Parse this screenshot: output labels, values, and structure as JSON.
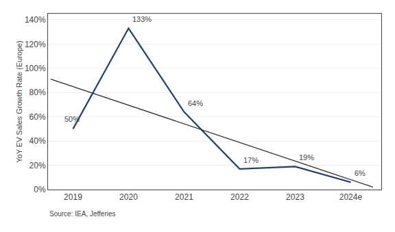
{
  "chart_data": {
    "type": "line",
    "y_label": "YoY EV Sales Growth Rate (Europe)",
    "series": [
      {
        "x": [
          2019,
          2020,
          2021,
          2022,
          2023,
          2024
        ],
        "values": [
          0.5,
          1.33,
          0.64,
          0.17,
          0.19,
          0.06
        ],
        "value_labels": [
          "50%",
          "133%",
          "64%",
          "17%",
          "19%",
          "6%"
        ],
        "color": "#1F3F6E"
      },
      {
        "x": [
          2018.6,
          2024.4
        ],
        "values": [
          0.91,
          0.02
        ],
        "color": "#2b2b2b"
      }
    ],
    "data_labels": true,
    "xlim": [
      2018.55,
      2024.55
    ],
    "xticks": [
      2019,
      2020,
      2021,
      2022,
      2023,
      {
        "value": 2024,
        "label": "2024e"
      }
    ],
    "ylim": [
      0,
      1.45
    ],
    "yticks": [
      {
        "value": 0,
        "label": "0%"
      },
      {
        "value": 0.2,
        "label": "20%"
      },
      {
        "value": 0.4,
        "label": "40%"
      },
      {
        "value": 0.6,
        "label": "60%"
      },
      {
        "value": 0.8,
        "label": "80%"
      },
      {
        "value": 1.0,
        "label": "100%"
      },
      {
        "value": 1.2,
        "label": "120%"
      },
      {
        "value": 1.4,
        "label": "140%"
      }
    ],
    "grid": "y",
    "annotations": [
      "Source: IEA, Jefferies"
    ]
  }
}
